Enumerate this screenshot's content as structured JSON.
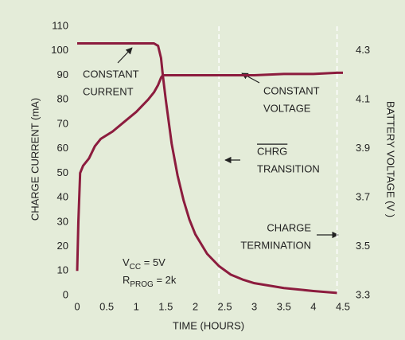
{
  "chart_data": {
    "type": "line",
    "xlabel": "TIME (HOURS)",
    "ylabel": "CHARGE CURRENT (mA)",
    "y2label": "BATTERY VOLTAGE (V )",
    "x": [
      0,
      0.02,
      0.05,
      0.1,
      0.2,
      0.3,
      0.4,
      0.6,
      0.8,
      1.0,
      1.2,
      1.3,
      1.37,
      1.42,
      1.45,
      1.5,
      1.6,
      1.7,
      1.8,
      1.9,
      2.0,
      2.2,
      2.4,
      2.6,
      2.8,
      3.0,
      3.5,
      4.0,
      4.4,
      4.5
    ],
    "series": [
      {
        "name": "CHARGE CURRENT",
        "color": "#8c1c3e",
        "values": [
          103,
          103,
          103,
          103,
          103,
          103,
          103,
          103,
          103,
          103,
          103,
          103,
          102,
          97,
          90,
          80,
          62,
          49,
          39,
          31,
          25,
          17,
          12,
          8.5,
          6.5,
          5,
          3,
          1.8,
          1,
          null
        ]
      },
      {
        "name": "BATTERY VOLTAGE",
        "color": "#8c1c3e",
        "axis": "y2",
        "values": [
          3.4,
          3.6,
          3.8,
          3.83,
          3.86,
          3.91,
          3.94,
          3.97,
          4.01,
          4.05,
          4.1,
          4.13,
          4.16,
          4.19,
          4.2,
          4.2,
          4.2,
          4.2,
          4.2,
          4.2,
          4.2,
          4.2,
          4.2,
          4.2,
          4.2,
          4.2,
          4.205,
          4.205,
          4.21,
          4.21
        ]
      }
    ],
    "xlim": [
      0,
      4.5
    ],
    "xticks": [
      0,
      0.5,
      1,
      1.5,
      2,
      2.5,
      3,
      3.5,
      4,
      4.5
    ],
    "ylim": [
      0,
      110
    ],
    "yticks": [
      0,
      10,
      20,
      30,
      40,
      50,
      60,
      70,
      80,
      90,
      100,
      110
    ],
    "y2lim": [
      3.3,
      4.4
    ],
    "y2ticks": [
      3.3,
      3.5,
      3.7,
      3.9,
      4.1,
      4.3
    ],
    "vlines": [
      2.4,
      4.4
    ],
    "annotations": [
      {
        "lines": [
          "CONSTANT",
          "CURRENT"
        ]
      },
      {
        "lines": [
          "CONSTANT",
          "VOLTAGE"
        ]
      },
      {
        "lines": [
          "CHRG",
          "TRANSITION"
        ]
      },
      {
        "lines": [
          "CHARGE",
          "TERMINATION"
        ]
      },
      {
        "lines": [
          [
            "V",
            "CC",
            " = 5V"
          ],
          [
            "R",
            "PROG",
            " = 2k"
          ]
        ]
      }
    ]
  }
}
